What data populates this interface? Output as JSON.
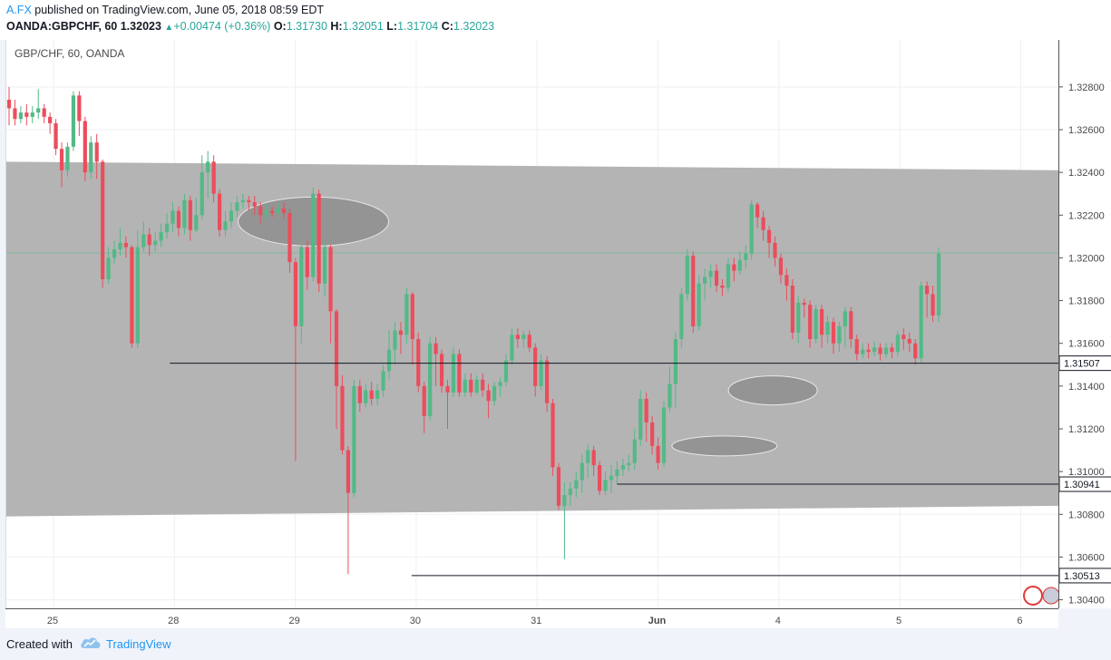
{
  "header": {
    "author": "A.FX",
    "published": " published on TradingView.com, June 05, 2018 08:59 EDT",
    "symbol": "OANDA:GBPCHF, 60",
    "last": "1.32023",
    "change": "+0.00474 (+0.36%)",
    "o_label": "O:",
    "o": "1.31730",
    "h_label": "H:",
    "h": "1.32051",
    "l_label": "L:",
    "l": "1.31704",
    "c_label": "C:",
    "c": "1.32023"
  },
  "legend": "GBP/CHF, 60, OANDA",
  "footer": {
    "created": "Created with",
    "brand": "TradingView"
  },
  "colors": {
    "up": "#53b987",
    "down": "#eb4d5c",
    "channel": "#b2b2b2",
    "accent": "#2196f3"
  },
  "chart_data": {
    "type": "candlestick",
    "title": "GBP/CHF, 60, OANDA",
    "x_ticks": [
      "25",
      "28",
      "29",
      "30",
      "31",
      "Jun",
      "4",
      "5",
      "6"
    ],
    "y_ticks": [
      "1.32800",
      "1.32600",
      "1.32400",
      "1.32200",
      "1.32000",
      "1.31800",
      "1.31600",
      "1.31400",
      "1.31200",
      "1.31000",
      "1.30800",
      "1.30600",
      "1.30400"
    ],
    "ylim": [
      1.3036,
      1.3302
    ],
    "grid": true,
    "horizontal_levels": [
      {
        "label": "1.31507",
        "value": 1.31507,
        "from_tick": 1.3
      },
      {
        "label": "1.30941",
        "value": 1.30941,
        "from_tick": 5.0
      },
      {
        "label": "1.30513",
        "value": 1.30513,
        "from_tick": 3.3
      }
    ],
    "channel": {
      "upper": [
        1.3245,
        1.3241
      ],
      "lower": [
        1.3079,
        1.3084
      ]
    },
    "ellipses": [
      {
        "x_tick": 2.3,
        "y": 1.3217
      },
      {
        "x_tick": 6.1,
        "y": 1.3138
      },
      {
        "x_tick": 5.7,
        "y": 1.3112
      }
    ],
    "candles": [
      [
        1.3274,
        1.327,
        1.328,
        1.3262
      ],
      [
        1.327,
        1.3265,
        1.3274,
        1.3262
      ],
      [
        1.3265,
        1.3268,
        1.3271,
        1.3263
      ],
      [
        1.3268,
        1.3266,
        1.3272,
        1.3262
      ],
      [
        1.3266,
        1.3268,
        1.3271,
        1.3263
      ],
      [
        1.3268,
        1.327,
        1.3279,
        1.3265
      ],
      [
        1.327,
        1.3266,
        1.3272,
        1.3263
      ],
      [
        1.3266,
        1.3263,
        1.3268,
        1.3258
      ],
      [
        1.3263,
        1.3251,
        1.3265,
        1.3248
      ],
      [
        1.3251,
        1.3241,
        1.3254,
        1.3233
      ],
      [
        1.3241,
        1.3252,
        1.3254,
        1.3238
      ],
      [
        1.3252,
        1.3276,
        1.3278,
        1.325
      ],
      [
        1.3276,
        1.3264,
        1.3278,
        1.3257
      ],
      [
        1.3264,
        1.324,
        1.3266,
        1.3236
      ],
      [
        1.324,
        1.3254,
        1.3257,
        1.3237
      ],
      [
        1.3254,
        1.3245,
        1.3258,
        1.3237
      ],
      [
        1.3245,
        1.319,
        1.3246,
        1.3186
      ],
      [
        1.319,
        1.32,
        1.3205,
        1.3188
      ],
      [
        1.32,
        1.3204,
        1.3208,
        1.3197
      ],
      [
        1.3204,
        1.3207,
        1.3214,
        1.3201
      ],
      [
        1.3207,
        1.3205,
        1.321,
        1.32
      ],
      [
        1.3205,
        1.316,
        1.3206,
        1.3158
      ],
      [
        1.316,
        1.3205,
        1.3213,
        1.3158
      ],
      [
        1.3205,
        1.3211,
        1.3217,
        1.3203
      ],
      [
        1.3211,
        1.3206,
        1.3214,
        1.3201
      ],
      [
        1.3206,
        1.3208,
        1.3212,
        1.3203
      ],
      [
        1.3208,
        1.3212,
        1.3216,
        1.3205
      ],
      [
        1.3212,
        1.3216,
        1.3221,
        1.3209
      ],
      [
        1.3216,
        1.3222,
        1.3226,
        1.3212
      ],
      [
        1.3222,
        1.3214,
        1.3224,
        1.321
      ],
      [
        1.3214,
        1.3227,
        1.323,
        1.3211
      ],
      [
        1.3227,
        1.3213,
        1.3229,
        1.3208
      ],
      [
        1.3213,
        1.322,
        1.3228,
        1.3212
      ],
      [
        1.322,
        1.324,
        1.3248,
        1.3218
      ],
      [
        1.324,
        1.3245,
        1.325,
        1.3228
      ],
      [
        1.3245,
        1.323,
        1.3248,
        1.3226
      ],
      [
        1.323,
        1.3213,
        1.3232,
        1.321
      ],
      [
        1.3213,
        1.3217,
        1.3222,
        1.321
      ],
      [
        1.3217,
        1.3222,
        1.3226,
        1.3214
      ],
      [
        1.3222,
        1.3226,
        1.3229,
        1.3219
      ],
      [
        1.3226,
        1.3227,
        1.323,
        1.3223
      ],
      [
        1.3227,
        1.3226,
        1.3229,
        1.3222
      ],
      [
        1.3226,
        1.3224,
        1.3229,
        1.322
      ],
      [
        1.3224,
        1.322,
        1.3226,
        1.3216
      ],
      [
        1.322,
        1.3222,
        1.3225,
        1.3218
      ],
      [
        1.3222,
        1.3221,
        1.3224,
        1.3219
      ],
      [
        1.3221,
        1.3223,
        1.3226,
        1.322
      ],
      [
        1.3223,
        1.3221,
        1.3226,
        1.3218
      ],
      [
        1.3221,
        1.3198,
        1.3223,
        1.3193
      ],
      [
        1.3198,
        1.3168,
        1.32,
        1.3105
      ],
      [
        1.3168,
        1.3205,
        1.3208,
        1.316
      ],
      [
        1.3205,
        1.3191,
        1.3208,
        1.3185
      ],
      [
        1.3191,
        1.323,
        1.3233,
        1.3189
      ],
      [
        1.323,
        1.3188,
        1.3232,
        1.3184
      ],
      [
        1.3188,
        1.3205,
        1.3208,
        1.3182
      ],
      [
        1.3205,
        1.3175,
        1.3206,
        1.316
      ],
      [
        1.3175,
        1.314,
        1.3176,
        1.312
      ],
      [
        1.314,
        1.311,
        1.3145,
        1.3108
      ],
      [
        1.311,
        1.309,
        1.3112,
        1.3052
      ],
      [
        1.309,
        1.314,
        1.3143,
        1.3088
      ],
      [
        1.314,
        1.3132,
        1.3143,
        1.3128
      ],
      [
        1.3132,
        1.3138,
        1.3141,
        1.313
      ],
      [
        1.3138,
        1.3134,
        1.3142,
        1.3131
      ],
      [
        1.3134,
        1.3138,
        1.3141,
        1.3131
      ],
      [
        1.3138,
        1.3147,
        1.315,
        1.3135
      ],
      [
        1.3147,
        1.3157,
        1.3166,
        1.3143
      ],
      [
        1.3157,
        1.3166,
        1.317,
        1.315
      ],
      [
        1.3166,
        1.3164,
        1.317,
        1.3155
      ],
      [
        1.3164,
        1.3183,
        1.3186,
        1.316
      ],
      [
        1.3183,
        1.3162,
        1.3184,
        1.315
      ],
      [
        1.3162,
        1.314,
        1.3165,
        1.3137
      ],
      [
        1.314,
        1.3126,
        1.3142,
        1.3118
      ],
      [
        1.3126,
        1.316,
        1.3163,
        1.3124
      ],
      [
        1.316,
        1.3155,
        1.3163,
        1.314
      ],
      [
        1.3155,
        1.314,
        1.3157,
        1.3137
      ],
      [
        1.314,
        1.3137,
        1.3143,
        1.312
      ],
      [
        1.3137,
        1.3155,
        1.3158,
        1.3135
      ],
      [
        1.3155,
        1.3137,
        1.3157,
        1.3135
      ],
      [
        1.3137,
        1.3143,
        1.3146,
        1.3135
      ],
      [
        1.3143,
        1.3137,
        1.3146,
        1.3135
      ],
      [
        1.3137,
        1.3143,
        1.3145,
        1.3136
      ],
      [
        1.3143,
        1.3138,
        1.3146,
        1.3135
      ],
      [
        1.3138,
        1.3133,
        1.3141,
        1.3125
      ],
      [
        1.3133,
        1.314,
        1.3142,
        1.3131
      ],
      [
        1.314,
        1.3142,
        1.3144,
        1.3135
      ],
      [
        1.3142,
        1.3152,
        1.3155,
        1.314
      ],
      [
        1.3152,
        1.3164,
        1.3167,
        1.315
      ],
      [
        1.3164,
        1.3162,
        1.3167,
        1.3158
      ],
      [
        1.3162,
        1.3164,
        1.3166,
        1.3158
      ],
      [
        1.3164,
        1.3158,
        1.3166,
        1.3156
      ],
      [
        1.3158,
        1.314,
        1.316,
        1.3135
      ],
      [
        1.314,
        1.3152,
        1.3155,
        1.3138
      ],
      [
        1.3152,
        1.3132,
        1.3154,
        1.3128
      ],
      [
        1.3132,
        1.3102,
        1.3134,
        1.3098
      ],
      [
        1.3102,
        1.3084,
        1.3104,
        1.3082
      ],
      [
        1.3084,
        1.3089,
        1.3095,
        1.3059
      ],
      [
        1.3089,
        1.3092,
        1.3095,
        1.3084
      ],
      [
        1.3092,
        1.3096,
        1.31,
        1.3088
      ],
      [
        1.3096,
        1.3104,
        1.3108,
        1.309
      ],
      [
        1.3104,
        1.311,
        1.3113,
        1.3097
      ],
      [
        1.311,
        1.3103,
        1.3112,
        1.3098
      ],
      [
        1.3103,
        1.3091,
        1.3105,
        1.3089
      ],
      [
        1.3091,
        1.3096,
        1.31,
        1.3089
      ],
      [
        1.3096,
        1.3098,
        1.3103,
        1.309
      ],
      [
        1.3098,
        1.3101,
        1.3105,
        1.3094
      ],
      [
        1.3101,
        1.3103,
        1.3106,
        1.3098
      ],
      [
        1.3103,
        1.3104,
        1.3108,
        1.31
      ],
      [
        1.3104,
        1.3115,
        1.312,
        1.3101
      ],
      [
        1.3115,
        1.3134,
        1.3138,
        1.3112
      ],
      [
        1.3134,
        1.3123,
        1.3137,
        1.3114
      ],
      [
        1.3123,
        1.3112,
        1.3126,
        1.3108
      ],
      [
        1.3112,
        1.3104,
        1.3116,
        1.3101
      ],
      [
        1.3104,
        1.313,
        1.3133,
        1.3102
      ],
      [
        1.313,
        1.3141,
        1.3149,
        1.3128
      ],
      [
        1.3141,
        1.3162,
        1.3165,
        1.313
      ],
      [
        1.3162,
        1.3183,
        1.3186,
        1.3158
      ],
      [
        1.3183,
        1.3201,
        1.3204,
        1.318
      ],
      [
        1.3201,
        1.3168,
        1.3203,
        1.3165
      ],
      [
        1.3168,
        1.3188,
        1.3192,
        1.3166
      ],
      [
        1.3188,
        1.3191,
        1.3195,
        1.318
      ],
      [
        1.3191,
        1.3194,
        1.3197,
        1.3186
      ],
      [
        1.3194,
        1.3187,
        1.3197,
        1.3184
      ],
      [
        1.3187,
        1.3186,
        1.319,
        1.3182
      ],
      [
        1.3186,
        1.3197,
        1.32,
        1.3184
      ],
      [
        1.3197,
        1.3194,
        1.32,
        1.3189
      ],
      [
        1.3194,
        1.3199,
        1.3203,
        1.3192
      ],
      [
        1.3199,
        1.3202,
        1.3206,
        1.3195
      ],
      [
        1.3202,
        1.3225,
        1.3227,
        1.3199
      ],
      [
        1.3225,
        1.3219,
        1.3226,
        1.3214
      ],
      [
        1.3219,
        1.3213,
        1.3222,
        1.3208
      ],
      [
        1.3213,
        1.3207,
        1.3215,
        1.32
      ],
      [
        1.3207,
        1.32,
        1.321,
        1.3196
      ],
      [
        1.32,
        1.3192,
        1.3202,
        1.3188
      ],
      [
        1.3192,
        1.3187,
        1.3195,
        1.318
      ],
      [
        1.3187,
        1.3165,
        1.319,
        1.3162
      ],
      [
        1.3165,
        1.3179,
        1.3182,
        1.316
      ],
      [
        1.3179,
        1.3178,
        1.3181,
        1.3172
      ],
      [
        1.3178,
        1.3162,
        1.318,
        1.3158
      ],
      [
        1.3162,
        1.3176,
        1.3178,
        1.316
      ],
      [
        1.3176,
        1.3164,
        1.3178,
        1.3158
      ],
      [
        1.3164,
        1.317,
        1.3173,
        1.316
      ],
      [
        1.317,
        1.316,
        1.3172,
        1.3155
      ],
      [
        1.316,
        1.3168,
        1.317,
        1.3156
      ],
      [
        1.3168,
        1.3175,
        1.3177,
        1.3158
      ],
      [
        1.3175,
        1.3162,
        1.3177,
        1.3158
      ],
      [
        1.3162,
        1.3155,
        1.3164,
        1.3152
      ],
      [
        1.3155,
        1.3157,
        1.316,
        1.3153
      ],
      [
        1.3157,
        1.3156,
        1.316,
        1.3153
      ],
      [
        1.3156,
        1.3158,
        1.3161,
        1.3154
      ],
      [
        1.3158,
        1.3155,
        1.316,
        1.3152
      ],
      [
        1.3155,
        1.3158,
        1.316,
        1.3153
      ],
      [
        1.3158,
        1.3156,
        1.316,
        1.3153
      ],
      [
        1.3156,
        1.3164,
        1.3166,
        1.3154
      ],
      [
        1.3164,
        1.3162,
        1.3167,
        1.3157
      ],
      [
        1.3162,
        1.316,
        1.3165,
        1.3156
      ],
      [
        1.316,
        1.3153,
        1.3162,
        1.315
      ],
      [
        1.3153,
        1.3187,
        1.3189,
        1.3151
      ],
      [
        1.3187,
        1.3183,
        1.3189,
        1.3172
      ],
      [
        1.3183,
        1.3173,
        1.3187,
        1.317
      ],
      [
        1.3173,
        1.3202,
        1.3205,
        1.317
      ]
    ]
  }
}
